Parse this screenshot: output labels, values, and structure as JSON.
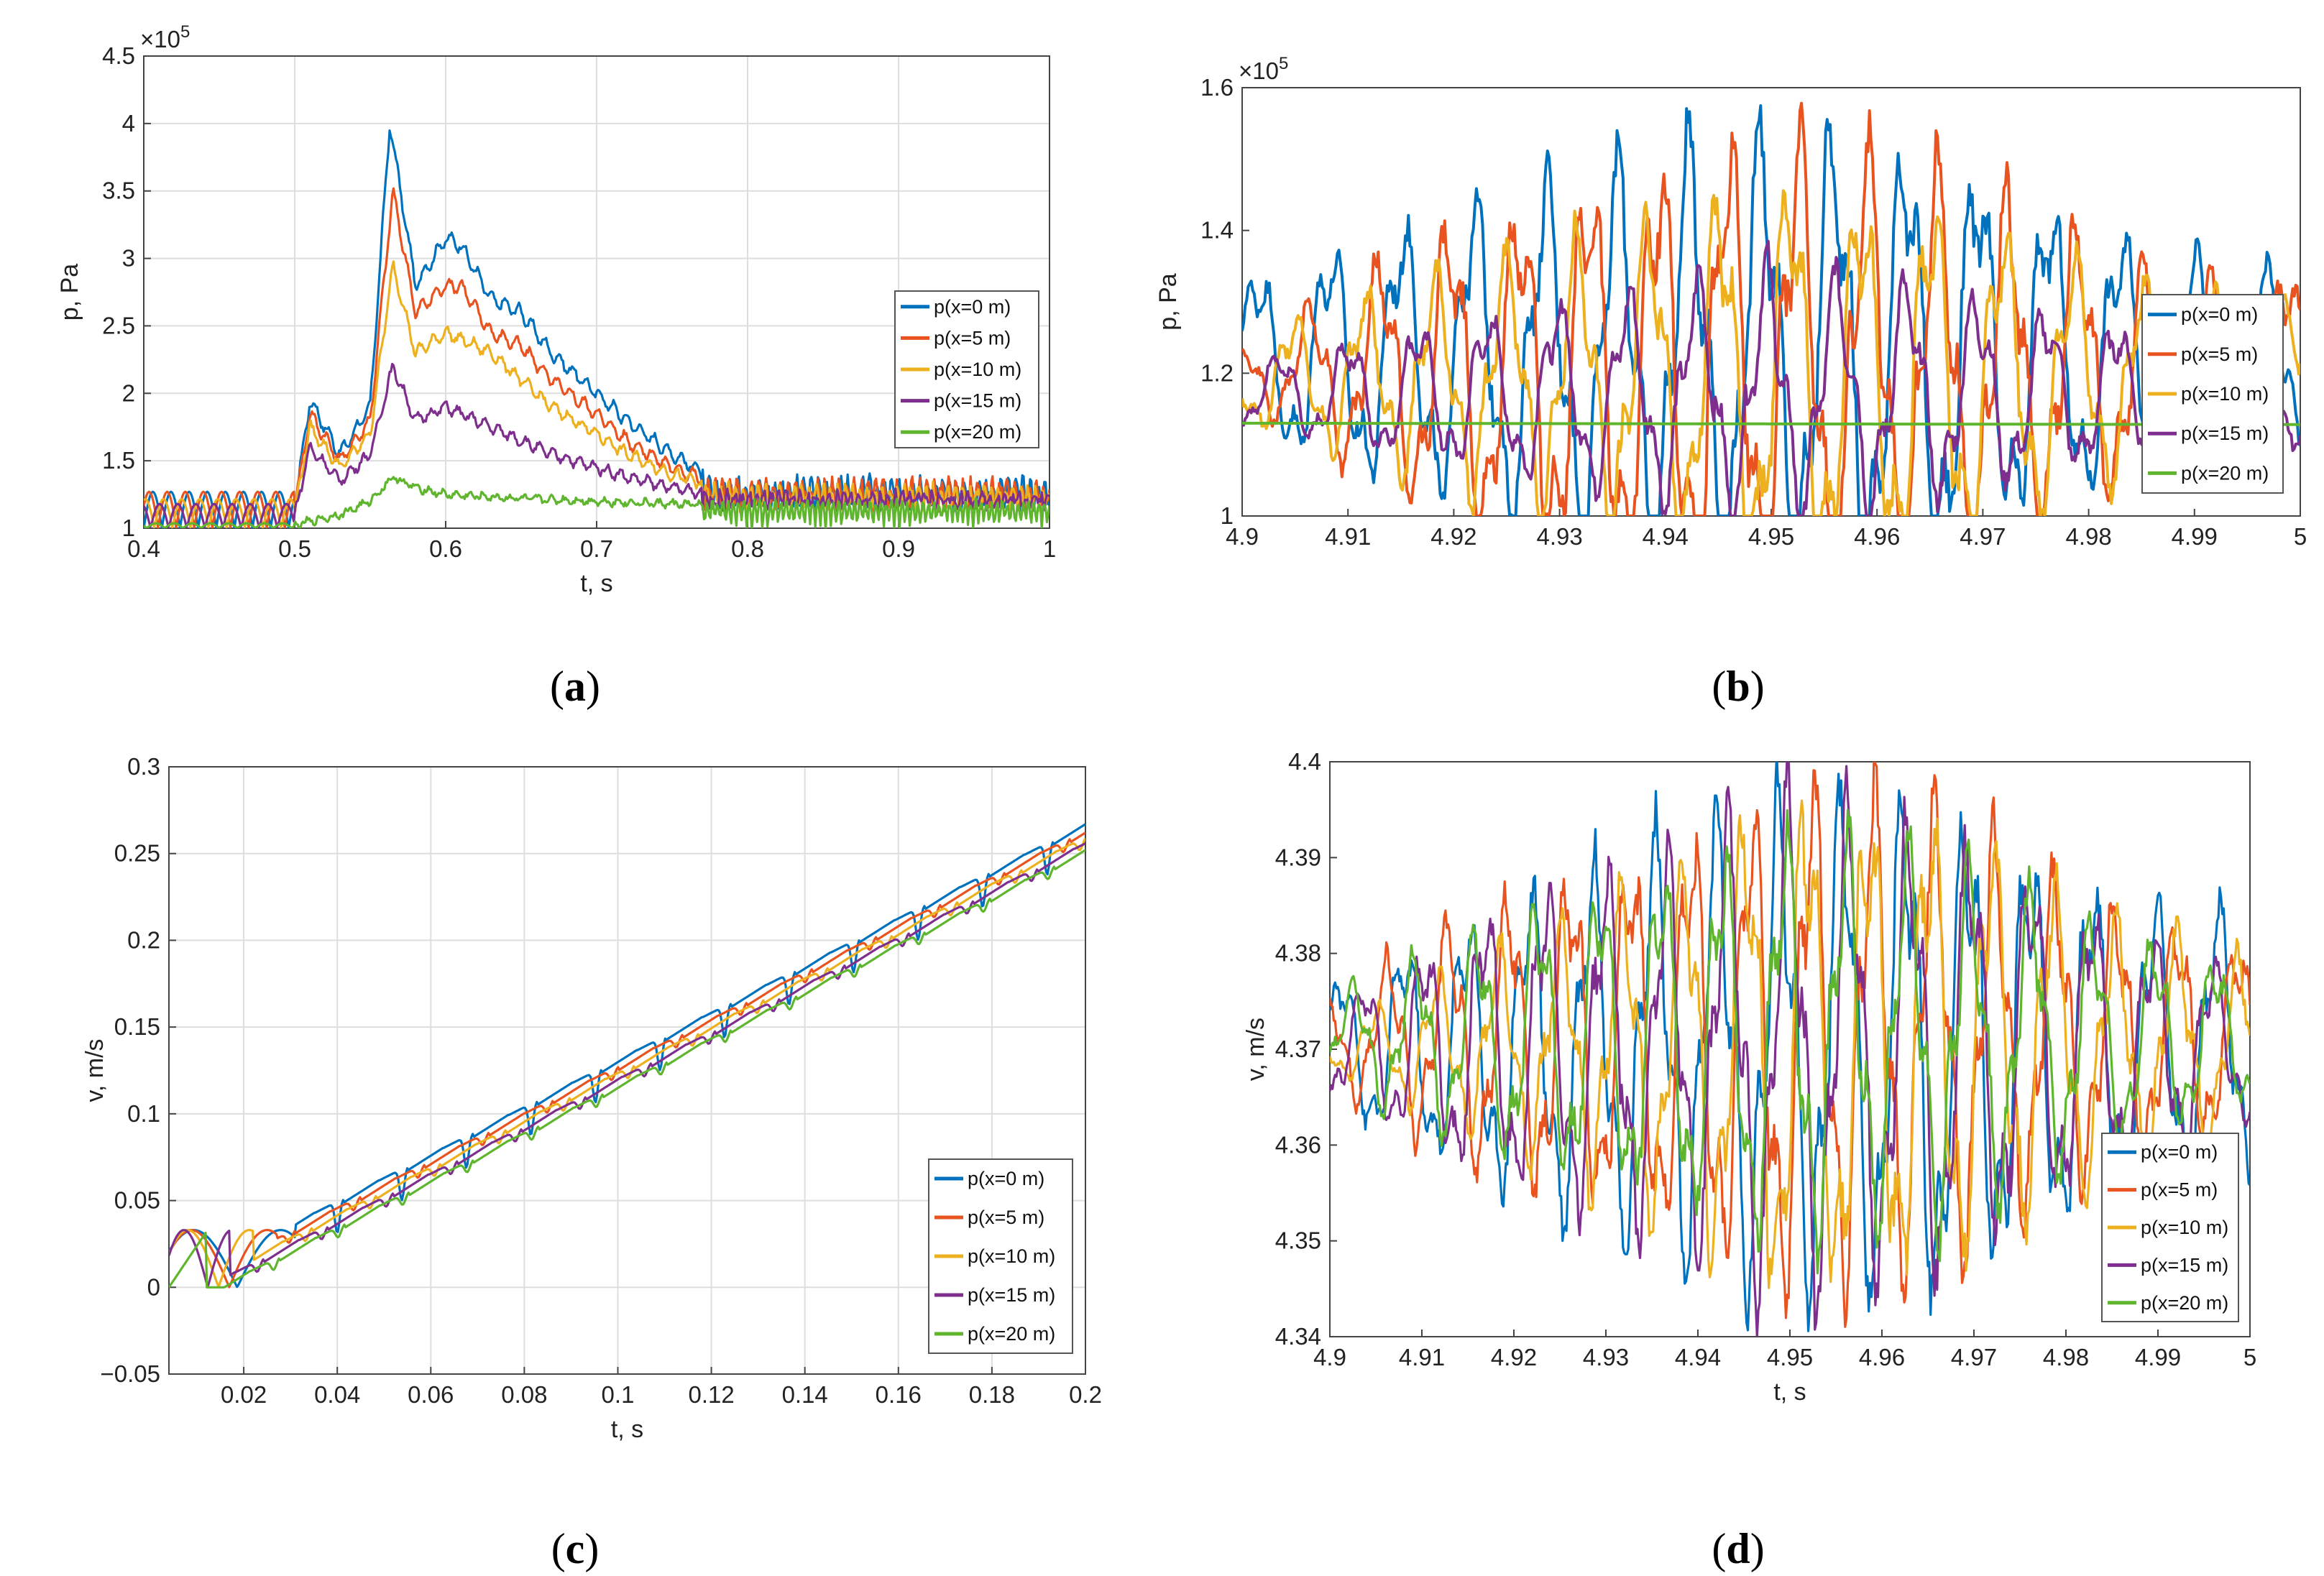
{
  "colors": {
    "s1": "#0072BD",
    "s2": "#E8531F",
    "s3": "#EDB120",
    "s4": "#7E2F8E",
    "s5": "#5FB52E",
    "grid": "#dedede",
    "axis": "#444444"
  },
  "chart_data": [
    {
      "type": "line",
      "panel_label": "a",
      "exponent_label": "×10",
      "exponent_power": "5",
      "xlabel": "t, s",
      "ylabel": "p, Pa",
      "xlim": [
        0.4,
        1.0
      ],
      "ylim": [
        1.0,
        4.5
      ],
      "grid": true,
      "legend_position": "right",
      "xticks": [
        0.4,
        0.5,
        0.6,
        0.7,
        0.8,
        0.9,
        1.0
      ],
      "xtick_labels": [
        "0.4",
        "0.5",
        "0.6",
        "0.7",
        "0.8",
        "0.9",
        "1"
      ],
      "yticks": [
        1.0,
        1.5,
        2.0,
        2.5,
        3.0,
        3.5,
        4.0,
        4.5
      ],
      "ytick_labels": [
        "1",
        "1.5",
        "2",
        "2.5",
        "3",
        "3.5",
        "4",
        "4.5"
      ],
      "series": [
        {
          "name": "p(x=0 m)",
          "x": [
            0.4,
            0.5,
            0.51,
            0.53,
            0.55,
            0.563,
            0.58,
            0.6,
            0.61,
            0.63,
            0.65,
            0.67,
            0.7,
            0.72,
            0.75,
            0.78,
            0.8,
            0.85,
            0.9,
            0.95,
            1.0
          ],
          "y": [
            1.15,
            1.15,
            1.95,
            1.55,
            1.9,
            4.0,
            2.8,
            3.15,
            3.1,
            2.7,
            2.6,
            2.3,
            2.0,
            1.8,
            1.55,
            1.35,
            1.35,
            1.35,
            1.35,
            1.35,
            1.35
          ],
          "osc": 0.12
        },
        {
          "name": "p(x=5 m)",
          "x": [
            0.4,
            0.5,
            0.51,
            0.53,
            0.55,
            0.565,
            0.58,
            0.6,
            0.61,
            0.63,
            0.65,
            0.67,
            0.7,
            0.72,
            0.75,
            0.78,
            0.8,
            0.85,
            0.9,
            0.95,
            1.0
          ],
          "y": [
            1.15,
            1.15,
            1.85,
            1.5,
            1.8,
            3.5,
            2.6,
            2.8,
            2.8,
            2.45,
            2.35,
            2.1,
            1.85,
            1.65,
            1.45,
            1.33,
            1.33,
            1.33,
            1.33,
            1.33,
            1.33
          ],
          "osc": 0.12
        },
        {
          "name": "p(x=10 m)",
          "x": [
            0.4,
            0.5,
            0.51,
            0.53,
            0.55,
            0.565,
            0.58,
            0.6,
            0.61,
            0.63,
            0.65,
            0.67,
            0.7,
            0.72,
            0.75,
            0.78,
            0.8,
            0.85,
            0.9,
            0.95,
            1.0
          ],
          "y": [
            1.12,
            1.12,
            1.75,
            1.45,
            1.7,
            2.95,
            2.3,
            2.45,
            2.4,
            2.3,
            2.1,
            1.9,
            1.7,
            1.55,
            1.4,
            1.3,
            1.3,
            1.3,
            1.3,
            1.3,
            1.3
          ],
          "osc": 0.1
        },
        {
          "name": "p(x=15 m)",
          "x": [
            0.4,
            0.5,
            0.51,
            0.53,
            0.55,
            0.565,
            0.58,
            0.6,
            0.61,
            0.63,
            0.65,
            0.67,
            0.7,
            0.72,
            0.75,
            0.78,
            0.8,
            0.85,
            0.9,
            0.95,
            1.0
          ],
          "y": [
            1.1,
            1.1,
            1.6,
            1.35,
            1.55,
            2.2,
            1.8,
            1.9,
            1.85,
            1.75,
            1.65,
            1.55,
            1.45,
            1.38,
            1.3,
            1.25,
            1.25,
            1.25,
            1.25,
            1.25,
            1.25
          ],
          "osc": 0.09
        },
        {
          "name": "p(x=20 m)",
          "x": [
            0.4,
            0.5,
            0.51,
            0.53,
            0.55,
            0.565,
            0.58,
            0.6,
            0.65,
            0.7,
            0.75,
            0.78,
            0.8,
            0.85,
            0.9,
            0.95,
            1.0
          ],
          "y": [
            1.02,
            1.02,
            1.05,
            1.1,
            1.2,
            1.38,
            1.3,
            1.25,
            1.22,
            1.2,
            1.18,
            1.17,
            1.17,
            1.17,
            1.17,
            1.17,
            1.17
          ],
          "osc": 0.05
        }
      ]
    },
    {
      "type": "line",
      "panel_label": "b",
      "exponent_label": "×10",
      "exponent_power": "5",
      "xlabel": "",
      "ylabel": "p, Pa",
      "xlim": [
        4.9,
        5.0
      ],
      "ylim": [
        1.0,
        1.6
      ],
      "grid": false,
      "legend_position": "right",
      "xticks": [
        4.9,
        4.91,
        4.92,
        4.93,
        4.94,
        4.95,
        4.96,
        4.97,
        4.98,
        4.99,
        5.0
      ],
      "xtick_labels": [
        "4.9",
        "4.91",
        "4.92",
        "4.93",
        "4.94",
        "4.95",
        "4.96",
        "4.97",
        "4.98",
        "4.99",
        "5"
      ],
      "yticks": [
        1.0,
        1.2,
        1.4,
        1.6
      ],
      "ytick_labels": [
        "1",
        "1.2",
        "1.4",
        "1.6"
      ],
      "series": [
        {
          "name": "p(x=0 m)",
          "mid": 1.22,
          "amp": [
            0.1,
            0.16,
            0.22,
            0.28,
            0.24,
            0.14,
            0.1
          ],
          "period": 0.0068,
          "phase": 0.2
        },
        {
          "name": "p(x=5 m)",
          "mid": 1.2,
          "amp": [
            0.03,
            0.16,
            0.22,
            0.28,
            0.24,
            0.14,
            0.12
          ],
          "period": 0.0066,
          "phase": 1.8
        },
        {
          "name": "p(x=10 m)",
          "mid": 1.19,
          "amp": [
            0.05,
            0.12,
            0.17,
            0.23,
            0.2,
            0.12,
            0.08
          ],
          "period": 0.0067,
          "phase": 3.3
        },
        {
          "name": "p(x=15 m)",
          "mid": 1.17,
          "amp": [
            0.04,
            0.08,
            0.11,
            0.15,
            0.12,
            0.08,
            0.06
          ],
          "period": 0.0066,
          "phase": 4.6
        },
        {
          "name": "p(x=20 m)",
          "mid": 1.13,
          "amp": [
            0,
            0,
            0,
            0,
            0,
            0,
            0
          ],
          "period": 0.01,
          "phase": 0
        }
      ]
    },
    {
      "type": "line",
      "panel_label": "c",
      "xlabel": "t, s",
      "ylabel": "v, m/s",
      "xlim": [
        0.004,
        0.2
      ],
      "ylim": [
        -0.05,
        0.3
      ],
      "grid": true,
      "legend_position": "bottom-right",
      "xticks": [
        0.02,
        0.04,
        0.06,
        0.08,
        0.1,
        0.12,
        0.14,
        0.16,
        0.18,
        0.2
      ],
      "xtick_labels": [
        "0.02",
        "0.04",
        "0.06",
        "0.08",
        "0.1",
        "0.12",
        "0.14",
        "0.16",
        "0.18",
        "0.2"
      ],
      "yticks": [
        -0.05,
        0,
        0.05,
        0.1,
        0.15,
        0.2,
        0.25,
        0.3
      ],
      "ytick_labels": [
        "−0.05",
        "0",
        "0.05",
        "0.1",
        "0.15",
        "0.2",
        "0.25",
        "0.3"
      ],
      "series": [
        {
          "name": "p(x=0 m)",
          "delay": 0.0,
          "first_end": 0.031
        },
        {
          "name": "p(x=5 m)",
          "delay": 0.0035,
          "first_end": 0.027
        },
        {
          "name": "p(x=10 m)",
          "delay": 0.007,
          "first_end": 0.022
        },
        {
          "name": "p(x=15 m)",
          "delay": 0.0105,
          "first_end": 0.017
        },
        {
          "name": "p(x=20 m)",
          "delay": 0.014,
          "first_end": 0.012
        }
      ]
    },
    {
      "type": "line",
      "panel_label": "d",
      "xlabel": "t, s",
      "ylabel": "v, m/s",
      "xlim": [
        4.9,
        5.0
      ],
      "ylim": [
        4.34,
        4.4
      ],
      "grid": false,
      "legend_position": "bottom-right",
      "xticks": [
        4.9,
        4.91,
        4.92,
        4.93,
        4.94,
        4.95,
        4.96,
        4.97,
        4.98,
        4.99,
        5.0
      ],
      "xtick_labels": [
        "4.9",
        "4.91",
        "4.92",
        "4.93",
        "4.94",
        "4.95",
        "4.96",
        "4.97",
        "4.98",
        "4.99",
        "5"
      ],
      "yticks": [
        4.34,
        4.35,
        4.36,
        4.37,
        4.38,
        4.39,
        4.4
      ],
      "ytick_labels": [
        "4.34",
        "4.35",
        "4.36",
        "4.37",
        "4.38",
        "4.39",
        "4.4"
      ],
      "series": [
        {
          "name": "p(x=0 m)",
          "mid": 4.37,
          "amp": [
            0.006,
            0.012,
            0.018,
            0.022,
            0.022,
            0.014,
            0.012
          ],
          "period": 0.0068,
          "phase": 0.4
        },
        {
          "name": "p(x=5 m)",
          "mid": 4.371,
          "amp": [
            0.004,
            0.012,
            0.016,
            0.022,
            0.02,
            0.012,
            0.008
          ],
          "period": 0.0066,
          "phase": 1.9
        },
        {
          "name": "p(x=10 m)",
          "mid": 4.37,
          "amp": [
            0.002,
            0.008,
            0.014,
            0.022,
            0.02,
            0.012,
            0.008
          ],
          "period": 0.0067,
          "phase": 3.2
        },
        {
          "name": "p(x=15 m)",
          "mid": 4.37,
          "amp": [
            0.004,
            0.012,
            0.016,
            0.022,
            0.02,
            0.012,
            0.006
          ],
          "period": 0.0066,
          "phase": 4.4
        },
        {
          "name": "p(x=20 m)",
          "mid": 4.371,
          "amp": [
            0.004,
            0.01,
            0.014,
            0.018,
            0.016,
            0.01,
            0.006
          ],
          "period": 0.0067,
          "phase": 5.5
        }
      ]
    }
  ]
}
